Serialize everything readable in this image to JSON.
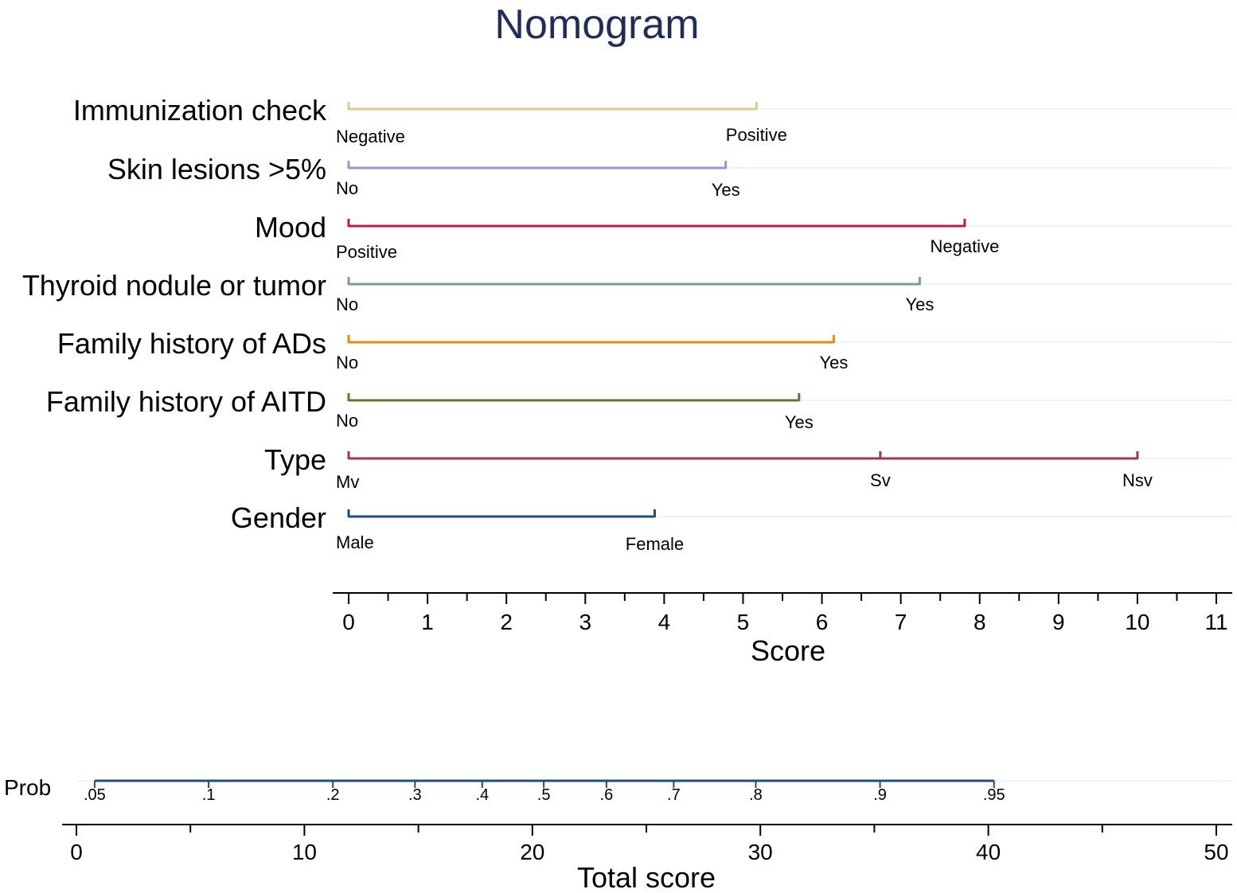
{
  "chart_data": {
    "type": "nomogram",
    "title": "Nomogram",
    "colors": {
      "title": "#1f2d57",
      "grid": "#eaf4f4",
      "axis": "#000000",
      "prob_line": "#1f4e79"
    },
    "score_axis": {
      "title": "Score",
      "range": [
        0,
        11
      ],
      "major_ticks": [
        0,
        1,
        2,
        3,
        4,
        5,
        6,
        7,
        8,
        9,
        10,
        11
      ],
      "minor_step": 0.5
    },
    "variables": [
      {
        "name": "Immunization check",
        "color": "#d9c98a",
        "levels": [
          {
            "label": "Negative",
            "score": 0
          },
          {
            "label": "Positive",
            "score": 5.17
          }
        ]
      },
      {
        "name": "Skin lesions >5%",
        "color": "#9b93d6",
        "levels": [
          {
            "label": "No",
            "score": 0
          },
          {
            "label": "Yes",
            "score": 4.78
          }
        ]
      },
      {
        "name": "Mood",
        "color": "#c8173f",
        "levels": [
          {
            "label": "Positive",
            "score": 0
          },
          {
            "label": "Negative",
            "score": 7.81
          }
        ]
      },
      {
        "name": "Thyroid nodule or tumor",
        "color": "#7a9e8d",
        "levels": [
          {
            "label": "No",
            "score": 0
          },
          {
            "label": "Yes",
            "score": 7.24
          }
        ]
      },
      {
        "name": "Family history of ADs",
        "color": "#e68a12",
        "levels": [
          {
            "label": "No",
            "score": 0
          },
          {
            "label": "Yes",
            "score": 6.15
          }
        ]
      },
      {
        "name": "Family history of AITD",
        "color": "#5a7a2e",
        "levels": [
          {
            "label": "No",
            "score": 0
          },
          {
            "label": "Yes",
            "score": 5.71
          }
        ]
      },
      {
        "name": "Type",
        "color": "#a0384a",
        "levels": [
          {
            "label": "Mv",
            "score": 0
          },
          {
            "label": "Sv",
            "score": 6.74
          },
          {
            "label": "Nsv",
            "score": 10
          }
        ]
      },
      {
        "name": "Gender",
        "color": "#1f4e79",
        "levels": [
          {
            "label": "Male",
            "score": 0
          },
          {
            "label": "Female",
            "score": 3.88
          }
        ]
      }
    ],
    "total_axis": {
      "title": "Total score",
      "range": [
        0,
        50
      ],
      "major_ticks": [
        0,
        10,
        20,
        30,
        40,
        50
      ],
      "minor_ticks": [
        5,
        15,
        25,
        35,
        45
      ]
    },
    "probability": {
      "title": "Prob",
      "points": [
        {
          "label": ".05",
          "total": 0.8
        },
        {
          "label": ".1",
          "total": 5.8
        },
        {
          "label": ".2",
          "total": 11.25
        },
        {
          "label": ".3",
          "total": 14.85
        },
        {
          "label": ".4",
          "total": 17.8
        },
        {
          "label": ".5",
          "total": 20.5
        },
        {
          "label": ".6",
          "total": 23.25
        },
        {
          "label": ".7",
          "total": 26.2
        },
        {
          "label": ".8",
          "total": 29.8
        },
        {
          "label": ".9",
          "total": 35.25
        },
        {
          "label": ".95",
          "total": 40.25
        }
      ]
    }
  }
}
